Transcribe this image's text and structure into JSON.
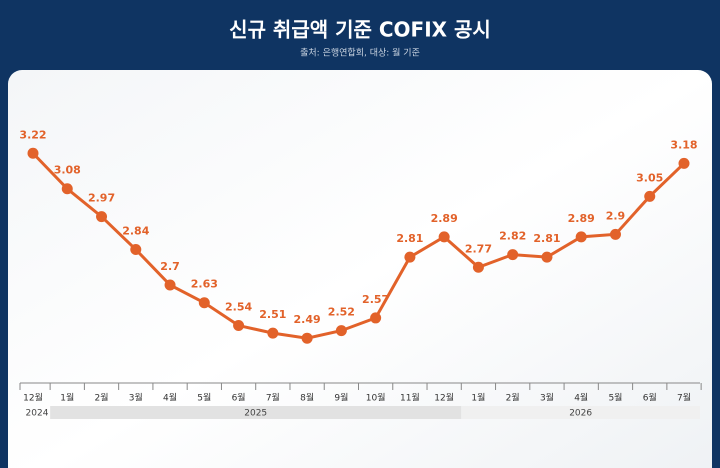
{
  "chart_data": {
    "type": "line",
    "title": "신규 취급액 기준 COFIX 공시",
    "subtitle": "출처: 은행연합회, 대상: 월 기준",
    "categories": [
      "12월",
      "1월",
      "2월",
      "3월",
      "4월",
      "5월",
      "6월",
      "7월",
      "8월",
      "9월",
      "10월",
      "11월",
      "12월",
      "1월",
      "2월",
      "3월",
      "4월",
      "5월",
      "6월",
      "7월"
    ],
    "years": [
      "2024",
      "2025",
      "2026"
    ],
    "series": [
      {
        "name": "COFIX",
        "color": "#e2622a",
        "values": [
          3.22,
          3.08,
          2.97,
          2.84,
          2.7,
          2.63,
          2.54,
          2.51,
          2.49,
          2.52,
          2.57,
          2.81,
          2.89,
          2.77,
          2.82,
          2.81,
          2.89,
          2.9,
          3.05,
          3.18
        ]
      }
    ],
    "ylim": [
      2.4,
      3.3
    ]
  }
}
